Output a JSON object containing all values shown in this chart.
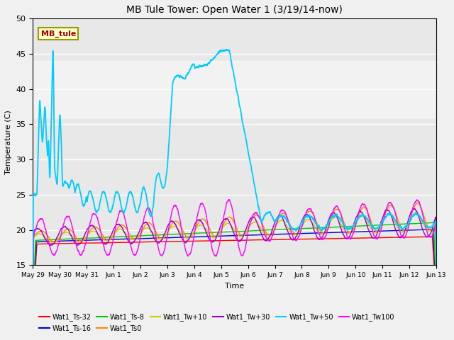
{
  "title": "MB Tule Tower: Open Water 1 (3/19/14-now)",
  "xlabel": "Time",
  "ylabel": "Temperature (C)",
  "ylim": [
    15,
    50
  ],
  "xlim": [
    0,
    15
  ],
  "background_color": "#f0f0f0",
  "plot_bg_color": "#e8e8e8",
  "shaded_ymin": 36,
  "shaded_ymax": 44,
  "grid_color": "#ffffff",
  "legend_labels": [
    "Wat1_Ts-32",
    "Wat1_Ts-16",
    "Wat1_Ts-8",
    "Wat1_Ts0",
    "Wat1_Tw+10",
    "Wat1_Tw+30",
    "Wat1_Tw+50",
    "Wat1_Tw100"
  ],
  "legend_colors": [
    "#ff0000",
    "#0000cc",
    "#00cc00",
    "#ff8800",
    "#cccc00",
    "#9900cc",
    "#00ccff",
    "#ff00ff"
  ],
  "xtick_labels": [
    "May 29",
    "May 30",
    "May 31",
    "Jun 1",
    "Jun 2",
    "Jun 3",
    "Jun 4",
    "Jun 5",
    "Jun 6",
    "Jun 7",
    "Jun 8",
    "Jun 9",
    "Jun 10",
    "Jun 11",
    "Jun 12",
    "Jun 13"
  ],
  "xtick_positions": [
    0,
    1,
    2,
    3,
    4,
    5,
    6,
    7,
    8,
    9,
    10,
    11,
    12,
    13,
    14,
    15
  ],
  "ytick_positions": [
    15,
    20,
    25,
    30,
    35,
    40,
    45,
    50
  ],
  "annotation_text": "MB_tule",
  "annotation_color": "#aa0000",
  "annotation_bg": "#ffffcc",
  "annotation_border": "#999900",
  "figsize": [
    6.4,
    4.8
  ],
  "dpi": 100
}
